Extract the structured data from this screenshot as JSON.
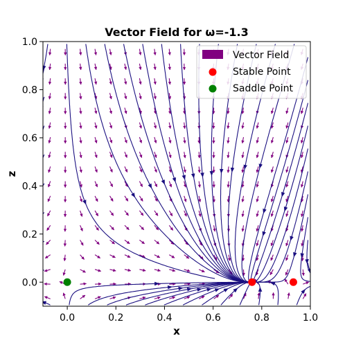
{
  "chart_data": {
    "type": "scatter",
    "title": "Vector Field for ω=-1.3",
    "xlabel": "x",
    "ylabel": "z",
    "xlim": [
      -0.1,
      1.0
    ],
    "ylim": [
      -0.1,
      1.0
    ],
    "xticks": [
      0.0,
      0.2,
      0.4,
      0.6,
      0.8,
      1.0
    ],
    "xtick_labels": [
      "0.0",
      "0.2",
      "0.4",
      "0.6",
      "0.8",
      "1.0"
    ],
    "yticks": [
      0.0,
      0.2,
      0.4,
      0.6,
      0.8,
      1.0
    ],
    "ytick_labels": [
      "0.0",
      "0.2",
      "0.4",
      "0.6",
      "0.8",
      "1.0"
    ],
    "grid": false,
    "legend_placement": "top-right",
    "series": [
      {
        "name": "Vector Field",
        "kind": "quiver",
        "color": "#800080"
      },
      {
        "name": "Stable Point",
        "kind": "points",
        "color": "#ff0000",
        "points": [
          [
            0.76,
            0.0
          ],
          [
            0.93,
            0.0
          ]
        ]
      },
      {
        "name": "Saddle Point",
        "kind": "points",
        "color": "#008000",
        "points": [
          [
            0.0,
            0.0
          ]
        ]
      }
    ],
    "streamline_color": "#1a0f80"
  }
}
